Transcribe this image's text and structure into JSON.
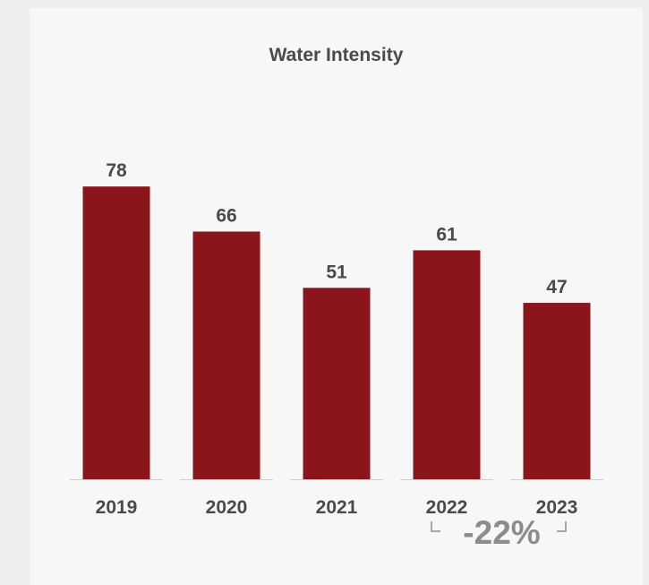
{
  "chart_data": {
    "type": "bar",
    "title": "Water Intensity",
    "xlabel": "",
    "ylabel": "",
    "categories": [
      "2019",
      "2020",
      "2021",
      "2022",
      "2023"
    ],
    "values": [
      78,
      66,
      51,
      61,
      47
    ],
    "value_labels": [
      "78",
      "66",
      "51",
      "61",
      "47"
    ],
    "ylim": [
      0,
      100
    ],
    "grid": false,
    "legend": "none",
    "bar_color": "#8a151a",
    "annotation": {
      "text": "-22%",
      "from_category": "2022",
      "to_category": "2023"
    }
  }
}
